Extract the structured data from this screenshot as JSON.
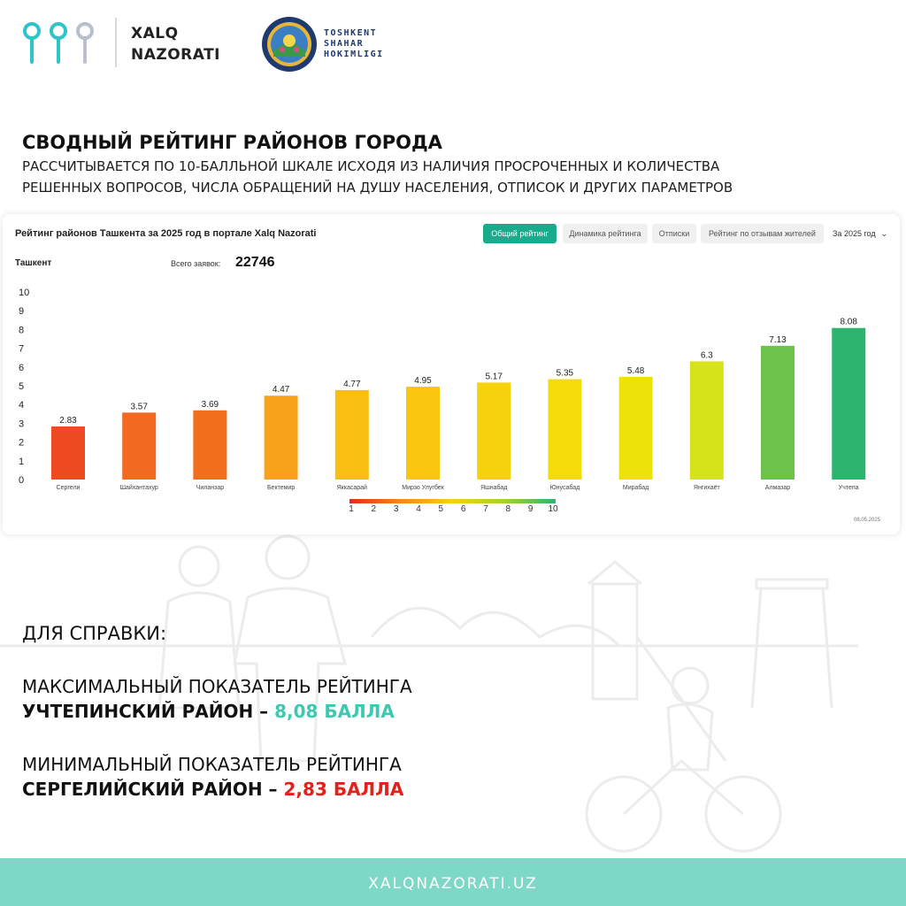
{
  "header": {
    "brand_line1": "XALQ",
    "brand_line2": "NAZORATI",
    "city_line1": "TOSHKENT",
    "city_line2": "SHAHAR",
    "city_line3": "HOKIMLIGI"
  },
  "headline": {
    "title": "СВОДНЫЙ РЕЙТИНГ РАЙОНОВ ГОРОДА",
    "subtitle_line1": "РАССЧИТЫВАЕТСЯ ПО 10-БАЛЛЬНОЙ ШКАЛЕ ИСХОДЯ ИЗ НАЛИЧИЯ ПРОСРОЧЕННЫХ И  КОЛИЧЕСТВА",
    "subtitle_line2": "РЕШЕННЫХ ВОПРОСОВ, ЧИСЛА ОБРАЩЕНИЙ НА ДУШУ НАСЕЛЕНИЯ, ОТПИСОК И ДРУГИХ ПАРАМЕТРОВ"
  },
  "card": {
    "title": "Рейтинг районов Ташкента за 2025 год в портале Xalq Nazorati",
    "tabs": [
      "Общий рейтинг",
      "Динамика рейтинга",
      "Отписки",
      "Рейтинг по отзывам жителей"
    ],
    "active_tab": "Общий рейтинг",
    "year_select": "За 2025 год",
    "region": "Ташкент",
    "total_label": "Всего заявок:",
    "total_value": "22746",
    "date": "08.05.2025"
  },
  "chart_data": {
    "type": "bar",
    "title": "Рейтинг районов Ташкента за 2025 год в портале Xalq Nazorati",
    "xlabel": "",
    "ylabel": "",
    "ylim": [
      0,
      10
    ],
    "yticks": [
      "0",
      "1",
      "2",
      "3",
      "4",
      "5",
      "6",
      "7",
      "8",
      "9",
      "10"
    ],
    "categories": [
      "Сергели",
      "Шайхантахур",
      "Чиланзар",
      "Бектемир",
      "Яккасарай",
      "Мирзо Улугбек",
      "Яшнабад",
      "Юнусабад",
      "Мирабад",
      "Янгихаёт",
      "Алмазар",
      "Учтепа"
    ],
    "values": [
      2.83,
      3.57,
      3.69,
      4.47,
      4.77,
      4.95,
      5.17,
      5.35,
      5.48,
      6.3,
      7.13,
      8.08
    ],
    "value_labels": [
      "2.83",
      "3.57",
      "3.69",
      "4.47",
      "4.77",
      "4.95",
      "5.17",
      "5.35",
      "5.48",
      "6.3",
      "7.13",
      "8.08"
    ],
    "colors": [
      "#f04a23",
      "#f26a21",
      "#f26e1c",
      "#f7a31a",
      "#f9be12",
      "#f9c50f",
      "#f7d10c",
      "#f4db09",
      "#ede20a",
      "#d6e21a",
      "#6cc24a",
      "#2db56f"
    ],
    "scale_legend": [
      "1",
      "2",
      "3",
      "4",
      "5",
      "6",
      "7",
      "8",
      "9",
      "10"
    ],
    "grid": false,
    "legend": "bottom"
  },
  "info": {
    "reference": "ДЛЯ СПРАВКИ:",
    "max_line1": "МАКСИМАЛЬНЫЙ ПОКАЗАТЕЛЬ РЕЙТИНГА",
    "max_district": "УЧТЕПИНСКИЙ  РАЙОН",
    "max_dash": " – ",
    "max_value": "8,08 БАЛЛА",
    "min_line1": "МИНИМАЛЬНЫЙ ПОКАЗАТЕЛЬ РЕЙТИНГА",
    "min_district": "СЕРГЕЛИЙСКИЙ РАЙОН",
    "min_dash": " – ",
    "min_value": "2,83 БАЛЛА"
  },
  "footer": {
    "url": "XALQNAZORATI.UZ"
  },
  "colors": {
    "accent": "#1aaa8c",
    "footer_bg": "#7dd8c8",
    "max_value": "#3cc9b0",
    "min_value": "#e3201b"
  }
}
